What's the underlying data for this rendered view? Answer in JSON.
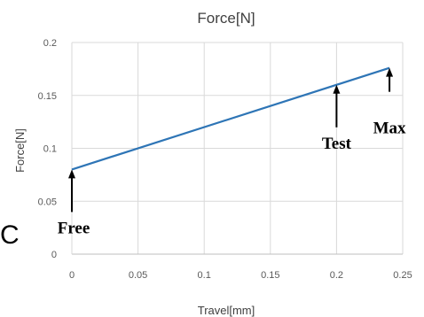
{
  "panel_letter": "C",
  "chart_data": {
    "type": "line",
    "title": "Force[N]",
    "xlabel": "Travel[mm]",
    "ylabel": "Force[N]",
    "xlim": [
      0,
      0.25
    ],
    "ylim": [
      0,
      0.2
    ],
    "x_ticks": [
      0,
      0.05,
      0.1,
      0.15,
      0.2,
      0.25
    ],
    "x_tick_labels": [
      "0",
      "0.05",
      "0.1",
      "0.15",
      "0.2",
      "0.25"
    ],
    "y_ticks": [
      0,
      0.05,
      0.1,
      0.15,
      0.2
    ],
    "y_tick_labels": [
      "0",
      "0.05",
      "0.1",
      "0.15",
      "0.2"
    ],
    "grid": true,
    "legend": "none",
    "series": [
      {
        "color": "#2E75B6",
        "x": [
          0,
          0.24
        ],
        "y": [
          0.08,
          0.176
        ]
      }
    ],
    "annotations": [
      {
        "text": "Free",
        "x": 0,
        "y": 0.08
      },
      {
        "text": "Test",
        "x": 0.2,
        "y": 0.16
      },
      {
        "text": "Max",
        "x": 0.24,
        "y": 0.176
      }
    ]
  }
}
